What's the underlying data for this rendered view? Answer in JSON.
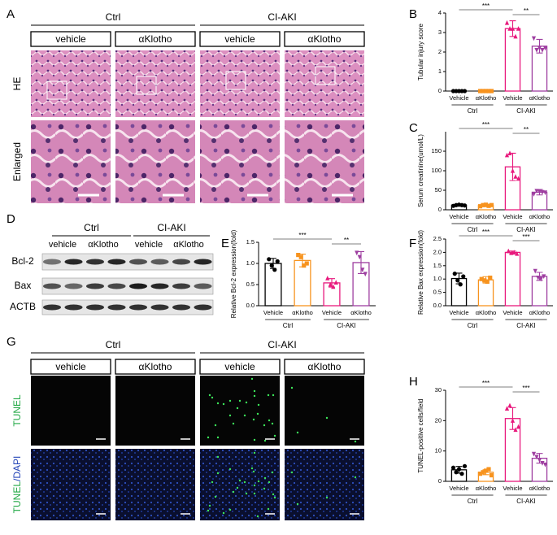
{
  "panel_a": {
    "letter": "A",
    "groups": [
      "Ctrl",
      "CI-AKI"
    ],
    "columns": [
      "vehicle",
      "αKlotho",
      "vehicle",
      "αKlotho"
    ],
    "rows": [
      "HE",
      "Enlarged"
    ]
  },
  "panel_d": {
    "letter": "D",
    "groups": [
      "Ctrl",
      "CI-AKI"
    ],
    "columns": [
      "vehicle",
      "αKlotho",
      "vehicle",
      "αKlotho"
    ],
    "rows": [
      "Bcl-2",
      "Bax",
      "ACTB"
    ]
  },
  "panel_g": {
    "letter": "G",
    "groups": [
      "Ctrl",
      "CI-AKI"
    ],
    "columns": [
      "vehicle",
      "αKlotho",
      "vehicle",
      "αKlotho"
    ],
    "rows": [
      [
        "TUNEL"
      ],
      [
        "TUNEL",
        "/DAPI"
      ]
    ]
  },
  "chart_data": [
    {
      "type": "bar",
      "panel": "B",
      "ylabel": "Tubular injury score",
      "categories": [
        "Vehicle",
        "αKlotho",
        "Vehicle",
        "αKlotho"
      ],
      "groups": [
        "Ctrl",
        "CI-AKI"
      ],
      "colors": [
        "#000000",
        "#f7931e",
        "#e8197d",
        "#9e3ea0"
      ],
      "values": [
        0,
        0,
        3.2,
        2.3
      ],
      "errors": [
        0,
        0,
        0.4,
        0.35
      ],
      "points": [
        [
          0,
          0,
          0,
          0,
          0
        ],
        [
          0,
          0,
          0,
          0,
          0
        ],
        [
          3.5,
          3.2,
          3.2,
          2.8,
          3.2
        ],
        [
          2.7,
          2.1,
          2.2,
          2.1,
          2.2
        ]
      ],
      "ylim": [
        0,
        4
      ],
      "yticks": [
        0,
        1,
        2,
        3,
        4
      ],
      "significance": [
        "***",
        "**"
      ]
    },
    {
      "type": "bar",
      "panel": "C",
      "ylabel": "Serum creatinine(umol/L)",
      "categories": [
        "Vehicle",
        "αKlotho",
        "Vehicle",
        "αKlotho"
      ],
      "groups": [
        "Ctrl",
        "CI-AKI"
      ],
      "colors": [
        "#000000",
        "#f7931e",
        "#e8197d",
        "#9e3ea0"
      ],
      "values": [
        12,
        11,
        110,
        45
      ],
      "errors": [
        2,
        3,
        35,
        7
      ],
      "points": [
        [
          10,
          12,
          13,
          12,
          11
        ],
        [
          9,
          12,
          13,
          10,
          12
        ],
        [
          140,
          145,
          100,
          85,
          80
        ],
        [
          40,
          48,
          47,
          45,
          44
        ]
      ],
      "ylim": [
        0,
        200
      ],
      "yticks": [
        0,
        50,
        100,
        150
      ],
      "significance": [
        "***",
        "**"
      ]
    },
    {
      "type": "bar",
      "panel": "E",
      "ylabel": "Relative Bcl-2 expression(fold)",
      "categories": [
        "Vehicle",
        "αKlotho",
        "Vehicle",
        "αKlotho"
      ],
      "groups": [
        "Ctrl",
        "CI-AKI"
      ],
      "colors": [
        "#000000",
        "#f7931e",
        "#e8197d",
        "#9e3ea0"
      ],
      "values": [
        1.0,
        1.07,
        0.54,
        1.02
      ],
      "errors": [
        0.12,
        0.15,
        0.1,
        0.26
      ],
      "points": [
        [
          1.1,
          0.95,
          0.85,
          1.05
        ],
        [
          1.2,
          1.15,
          0.95,
          1.0
        ],
        [
          0.65,
          0.5,
          0.45,
          0.55
        ],
        [
          1.25,
          1.15,
          0.85,
          0.75
        ]
      ],
      "ylim": [
        0,
        1.5
      ],
      "yticks": [
        {
          "value": 0,
          "label": "0.0"
        },
        0.5,
        {
          "value": 1,
          "label": "1.0"
        },
        1.5
      ],
      "significance": [
        "***",
        "**"
      ]
    },
    {
      "type": "bar",
      "panel": "F",
      "ylabel": "Relative Bax expression(fold)",
      "categories": [
        "Vehicle",
        "αKlotho",
        "Vehicle",
        "αKlotho"
      ],
      "groups": [
        "Ctrl",
        "CI-AKI"
      ],
      "colors": [
        "#000000",
        "#f7931e",
        "#e8197d",
        "#9e3ea0"
      ],
      "values": [
        1.02,
        0.97,
        2.0,
        1.1
      ],
      "errors": [
        0.2,
        0.12,
        0.05,
        0.15
      ],
      "points": [
        [
          1.2,
          0.95,
          0.8,
          1.1
        ],
        [
          1.0,
          0.95,
          0.9,
          1.05
        ],
        [
          2.05,
          1.98,
          2.0,
          1.95
        ],
        [
          1.3,
          1.05,
          1.0,
          1.1
        ]
      ],
      "ylim": [
        0,
        2.5
      ],
      "yticks": [
        {
          "value": 0,
          "label": "0.0"
        },
        0.5,
        {
          "value": 1,
          "label": "1.0"
        },
        1.5,
        {
          "value": 2,
          "label": "2.0"
        },
        2.5
      ],
      "significance": [
        "***",
        "***"
      ]
    },
    {
      "type": "bar",
      "panel": "H",
      "ylabel": "TUNEL-positive cells/field",
      "categories": [
        "Vehicle",
        "αKlotho",
        "Vehicle",
        "αKlotho"
      ],
      "groups": [
        "Ctrl",
        "CI-AKI"
      ],
      "colors": [
        "#000000",
        "#f7931e",
        "#e8197d",
        "#9e3ea0"
      ],
      "values": [
        3.8,
        3.0,
        20.7,
        7.6
      ],
      "errors": [
        1.1,
        0.8,
        3.6,
        1.6
      ],
      "points": [
        [
          4.5,
          3,
          4,
          2.5,
          5
        ],
        [
          2.5,
          3,
          3.5,
          4,
          2
        ],
        [
          24,
          25,
          20,
          17,
          18
        ],
        [
          9,
          8,
          7,
          6,
          5.5
        ]
      ],
      "ylim": [
        0,
        30
      ],
      "yticks": [
        0,
        10,
        20,
        30
      ],
      "significance": [
        "***",
        "***"
      ]
    }
  ]
}
